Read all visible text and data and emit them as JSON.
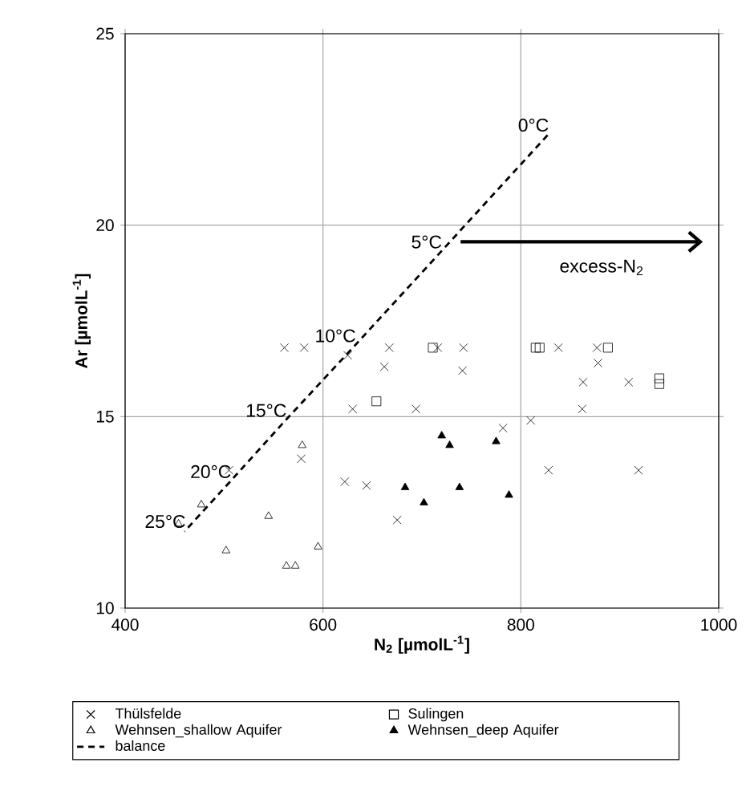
{
  "chart_data": {
    "type": "scatter",
    "xlabel": "N$_{2}$ [µmolL$^{-1}$]",
    "ylabel": "Ar [µmolL$^{-1}$]",
    "xlim": [
      400,
      1000
    ],
    "xticks": [
      400,
      600,
      800,
      1000
    ],
    "ylim": [
      10,
      25
    ],
    "yticks": [
      10,
      15,
      20,
      25
    ],
    "grid": true,
    "legend": "bottom",
    "series": [
      {
        "name": "Thülsfelde",
        "color": "#000000",
        "marker": "cross",
        "x": [
          561,
          581,
          625,
          667,
          662,
          716,
          742,
          741,
          630,
          694,
          838,
          877,
          878,
          863,
          909,
          862,
          782,
          810,
          578,
          505,
          622,
          644,
          675,
          828,
          919
        ],
        "values": [
          16.8,
          16.8,
          16.6,
          16.8,
          16.3,
          16.8,
          16.8,
          16.2,
          15.2,
          15.2,
          16.8,
          16.8,
          16.4,
          15.9,
          15.9,
          15.2,
          14.7,
          14.9,
          13.9,
          13.6,
          13.3,
          13.2,
          12.3,
          13.6,
          13.6
        ]
      },
      {
        "name": "Sulingen",
        "color": "#000000",
        "marker": "square",
        "x": [
          711,
          815,
          819,
          888,
          940,
          940,
          654
        ],
        "values": [
          16.8,
          16.8,
          16.8,
          16.8,
          16.0,
          15.85,
          15.4
        ]
      },
      {
        "name": "Wehnsen_shallow Aquifer",
        "color": "#000000",
        "marker": "triangle",
        "x": [
          579,
          477,
          454,
          545,
          502,
          563,
          572,
          595
        ],
        "values": [
          14.25,
          12.7,
          12.2,
          12.4,
          11.5,
          11.1,
          11.1,
          11.6
        ]
      },
      {
        "name": "Wehnsen_deep Aquifer",
        "color": "#000000",
        "marker": "triangle_filled",
        "x": [
          720,
          728,
          775,
          683,
          702,
          738,
          788
        ],
        "values": [
          14.5,
          14.25,
          14.35,
          13.15,
          12.75,
          13.15,
          12.95
        ]
      },
      {
        "name": "balance",
        "type": "line",
        "color": "#000000",
        "marker": "none",
        "line_style": "dashed",
        "x": [
          827,
          719,
          632,
          562,
          506,
          460
        ],
        "values": [
          22.35,
          19.3,
          16.85,
          14.9,
          13.3,
          12.0
        ]
      }
    ],
    "annotations": [
      {
        "text": "0°C",
        "x": 827,
        "y": 22.35
      },
      {
        "text": "5°C",
        "x": 719,
        "y": 19.3
      },
      {
        "text": "10°C",
        "x": 632,
        "y": 16.85
      },
      {
        "text": "15°C",
        "x": 562,
        "y": 14.9
      },
      {
        "text": "20°C",
        "x": 506,
        "y": 13.3
      },
      {
        "text": "25°C",
        "x": 460,
        "y": 12.0
      },
      "excess-N$_{2}$"
    ]
  }
}
